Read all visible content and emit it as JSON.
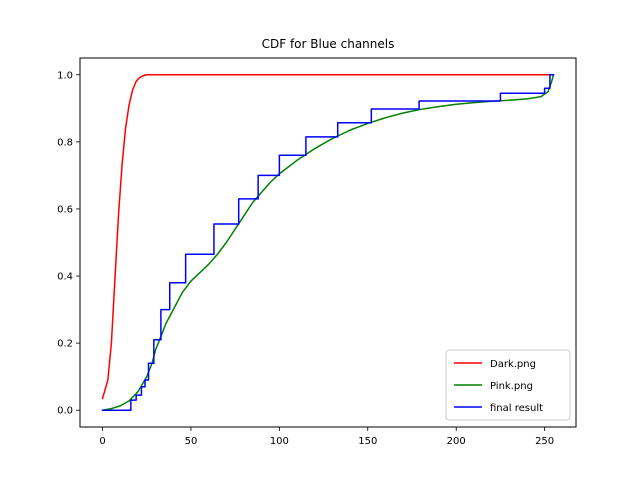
{
  "chart_data": {
    "type": "line",
    "title": "CDF for Blue channels",
    "xlabel": "",
    "ylabel": "",
    "xlim": [
      -12.75,
      267.75
    ],
    "ylim": [
      -0.05,
      1.05
    ],
    "x_ticks": [
      0,
      50,
      100,
      150,
      200,
      250
    ],
    "y_ticks": [
      0.0,
      0.2,
      0.4,
      0.6,
      0.8,
      1.0
    ],
    "x_tick_labels": [
      "0",
      "50",
      "100",
      "150",
      "200",
      "250"
    ],
    "y_tick_labels": [
      "0.0",
      "0.2",
      "0.4",
      "0.6",
      "0.8",
      "1.0"
    ],
    "grid": false,
    "legend_position": "lower-right",
    "series": [
      {
        "name": "Dark.png",
        "color": "#ff0000",
        "step": false,
        "x": [
          0,
          3,
          5,
          7,
          9,
          11,
          13,
          15,
          17,
          19,
          21,
          23,
          25,
          30,
          40,
          60,
          100,
          150,
          200,
          255
        ],
        "y": [
          0.035,
          0.09,
          0.2,
          0.39,
          0.58,
          0.73,
          0.84,
          0.91,
          0.955,
          0.98,
          0.992,
          0.997,
          1.0,
          1.0,
          1.0,
          1.0,
          1.0,
          1.0,
          1.0,
          1.0
        ]
      },
      {
        "name": "Pink.png",
        "color": "#008000",
        "step": false,
        "x": [
          0,
          5,
          10,
          15,
          20,
          25,
          28,
          30,
          33,
          36,
          40,
          45,
          50,
          55,
          60,
          65,
          70,
          75,
          80,
          85,
          90,
          95,
          100,
          110,
          120,
          130,
          140,
          150,
          160,
          170,
          180,
          190,
          200,
          210,
          220,
          230,
          240,
          248,
          252,
          254,
          255
        ],
        "y": [
          0.0,
          0.005,
          0.013,
          0.028,
          0.055,
          0.1,
          0.14,
          0.18,
          0.22,
          0.26,
          0.3,
          0.35,
          0.385,
          0.41,
          0.435,
          0.465,
          0.5,
          0.54,
          0.58,
          0.62,
          0.65,
          0.68,
          0.705,
          0.745,
          0.78,
          0.81,
          0.835,
          0.855,
          0.872,
          0.886,
          0.897,
          0.905,
          0.912,
          0.917,
          0.921,
          0.924,
          0.928,
          0.935,
          0.95,
          0.98,
          1.0
        ]
      },
      {
        "name": "final result",
        "color": "#0000ff",
        "step": true,
        "x": [
          0,
          16,
          19,
          22,
          24,
          26,
          29,
          33,
          38,
          47,
          63,
          77,
          88,
          100,
          115,
          133,
          152,
          179,
          225,
          250,
          253,
          255
        ],
        "y": [
          0.0,
          0.03,
          0.045,
          0.07,
          0.09,
          0.14,
          0.21,
          0.3,
          0.38,
          0.465,
          0.555,
          0.63,
          0.7,
          0.76,
          0.815,
          0.857,
          0.898,
          0.922,
          0.945,
          0.96,
          1.0,
          1.0
        ]
      }
    ]
  }
}
